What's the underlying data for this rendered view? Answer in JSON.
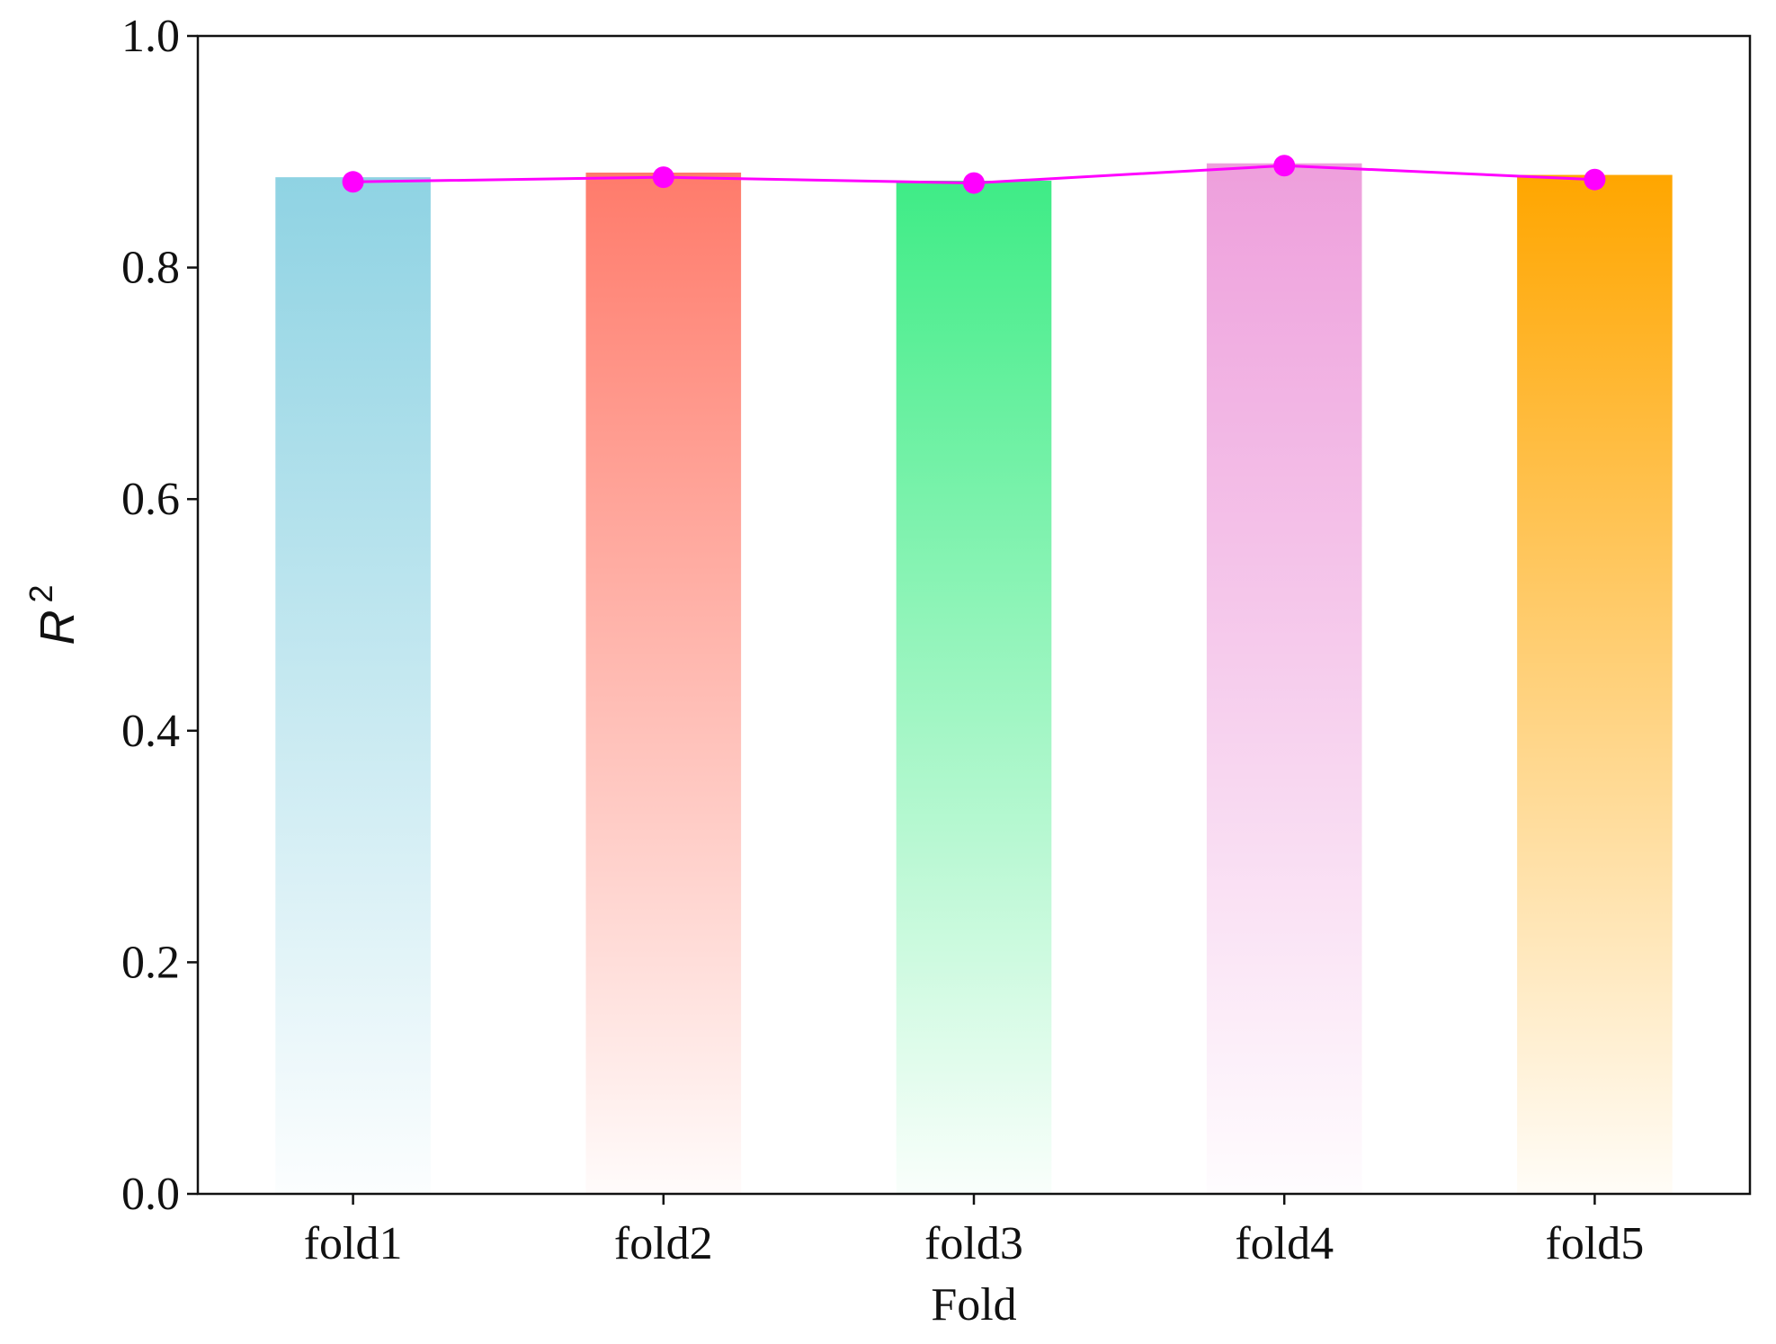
{
  "chart_data": {
    "type": "bar",
    "title": "",
    "xlabel": "Fold",
    "ylabel": "R",
    "ylabel_superscript": "2",
    "categories": [
      "fold1",
      "fold2",
      "fold3",
      "fold4",
      "fold5"
    ],
    "values": [
      0.878,
      0.882,
      0.875,
      0.89,
      0.88
    ],
    "bar_colors": [
      "#8fd3e3",
      "#ff7b6b",
      "#3fec86",
      "#ee9fdc",
      "#ffa600"
    ],
    "line_series": {
      "values": [
        0.874,
        0.878,
        0.873,
        0.888,
        0.876
      ],
      "color": "#ff00ff"
    },
    "ylim": [
      0,
      1.0
    ],
    "yticks": [
      "0.0",
      "0.2",
      "0.4",
      "0.6",
      "0.8",
      "1.0"
    ],
    "grid": false,
    "legend": "none"
  }
}
